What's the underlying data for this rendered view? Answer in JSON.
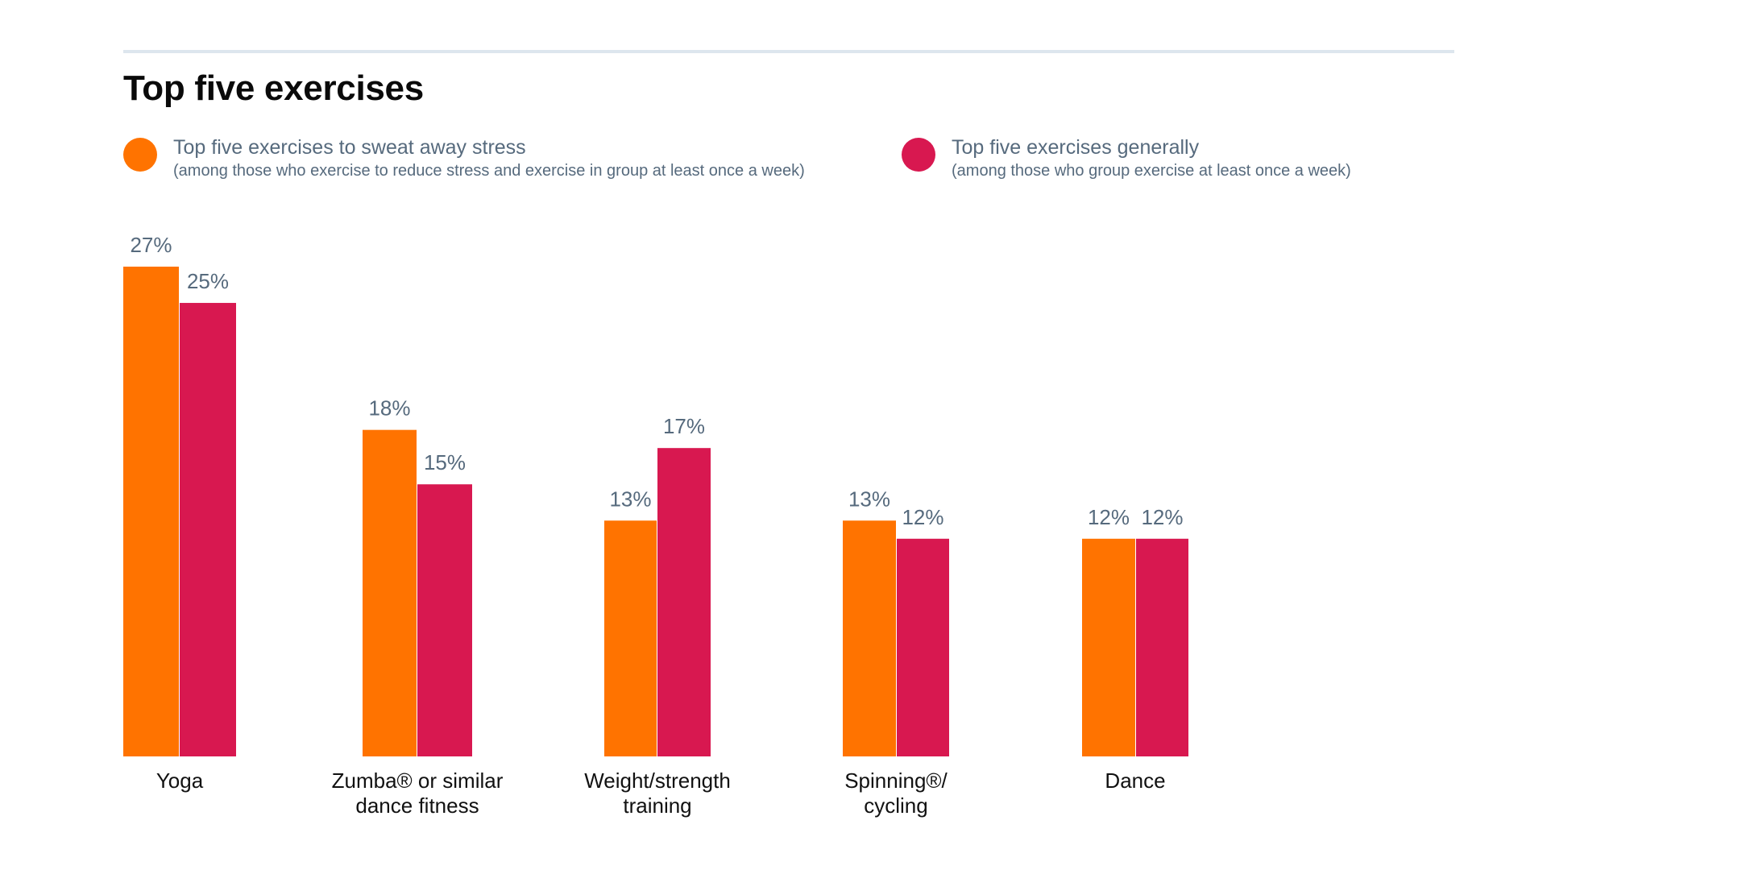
{
  "colors": {
    "series1": "#ff7300",
    "series2": "#d81850",
    "rule": "#dde6ee",
    "label_text": "#566a7d",
    "category_text": "#111111"
  },
  "chart_data": {
    "type": "bar",
    "title": "Top five exercises",
    "xlabel": "",
    "ylabel": "",
    "ylim": [
      0,
      27
    ],
    "grid": false,
    "legend_placement": "top-left",
    "value_format": "percent",
    "categories": [
      [
        "Yoga"
      ],
      [
        "Zumba® or similar",
        "dance fitness"
      ],
      [
        "Weight/strength",
        "training"
      ],
      [
        "Spinning®/",
        "cycling"
      ],
      [
        "Dance"
      ]
    ],
    "series": [
      {
        "name": "Top five exercises to sweat away stress",
        "subtitle": "(among those who exercise to reduce stress and exercise in group at least once a week)",
        "color": "#ff7300",
        "values": [
          27,
          18,
          13,
          13,
          12
        ]
      },
      {
        "name": "Top five exercises generally",
        "subtitle": "(among those who group exercise at least once a week)",
        "color": "#d81850",
        "values": [
          25,
          15,
          17,
          12,
          12
        ]
      }
    ]
  }
}
